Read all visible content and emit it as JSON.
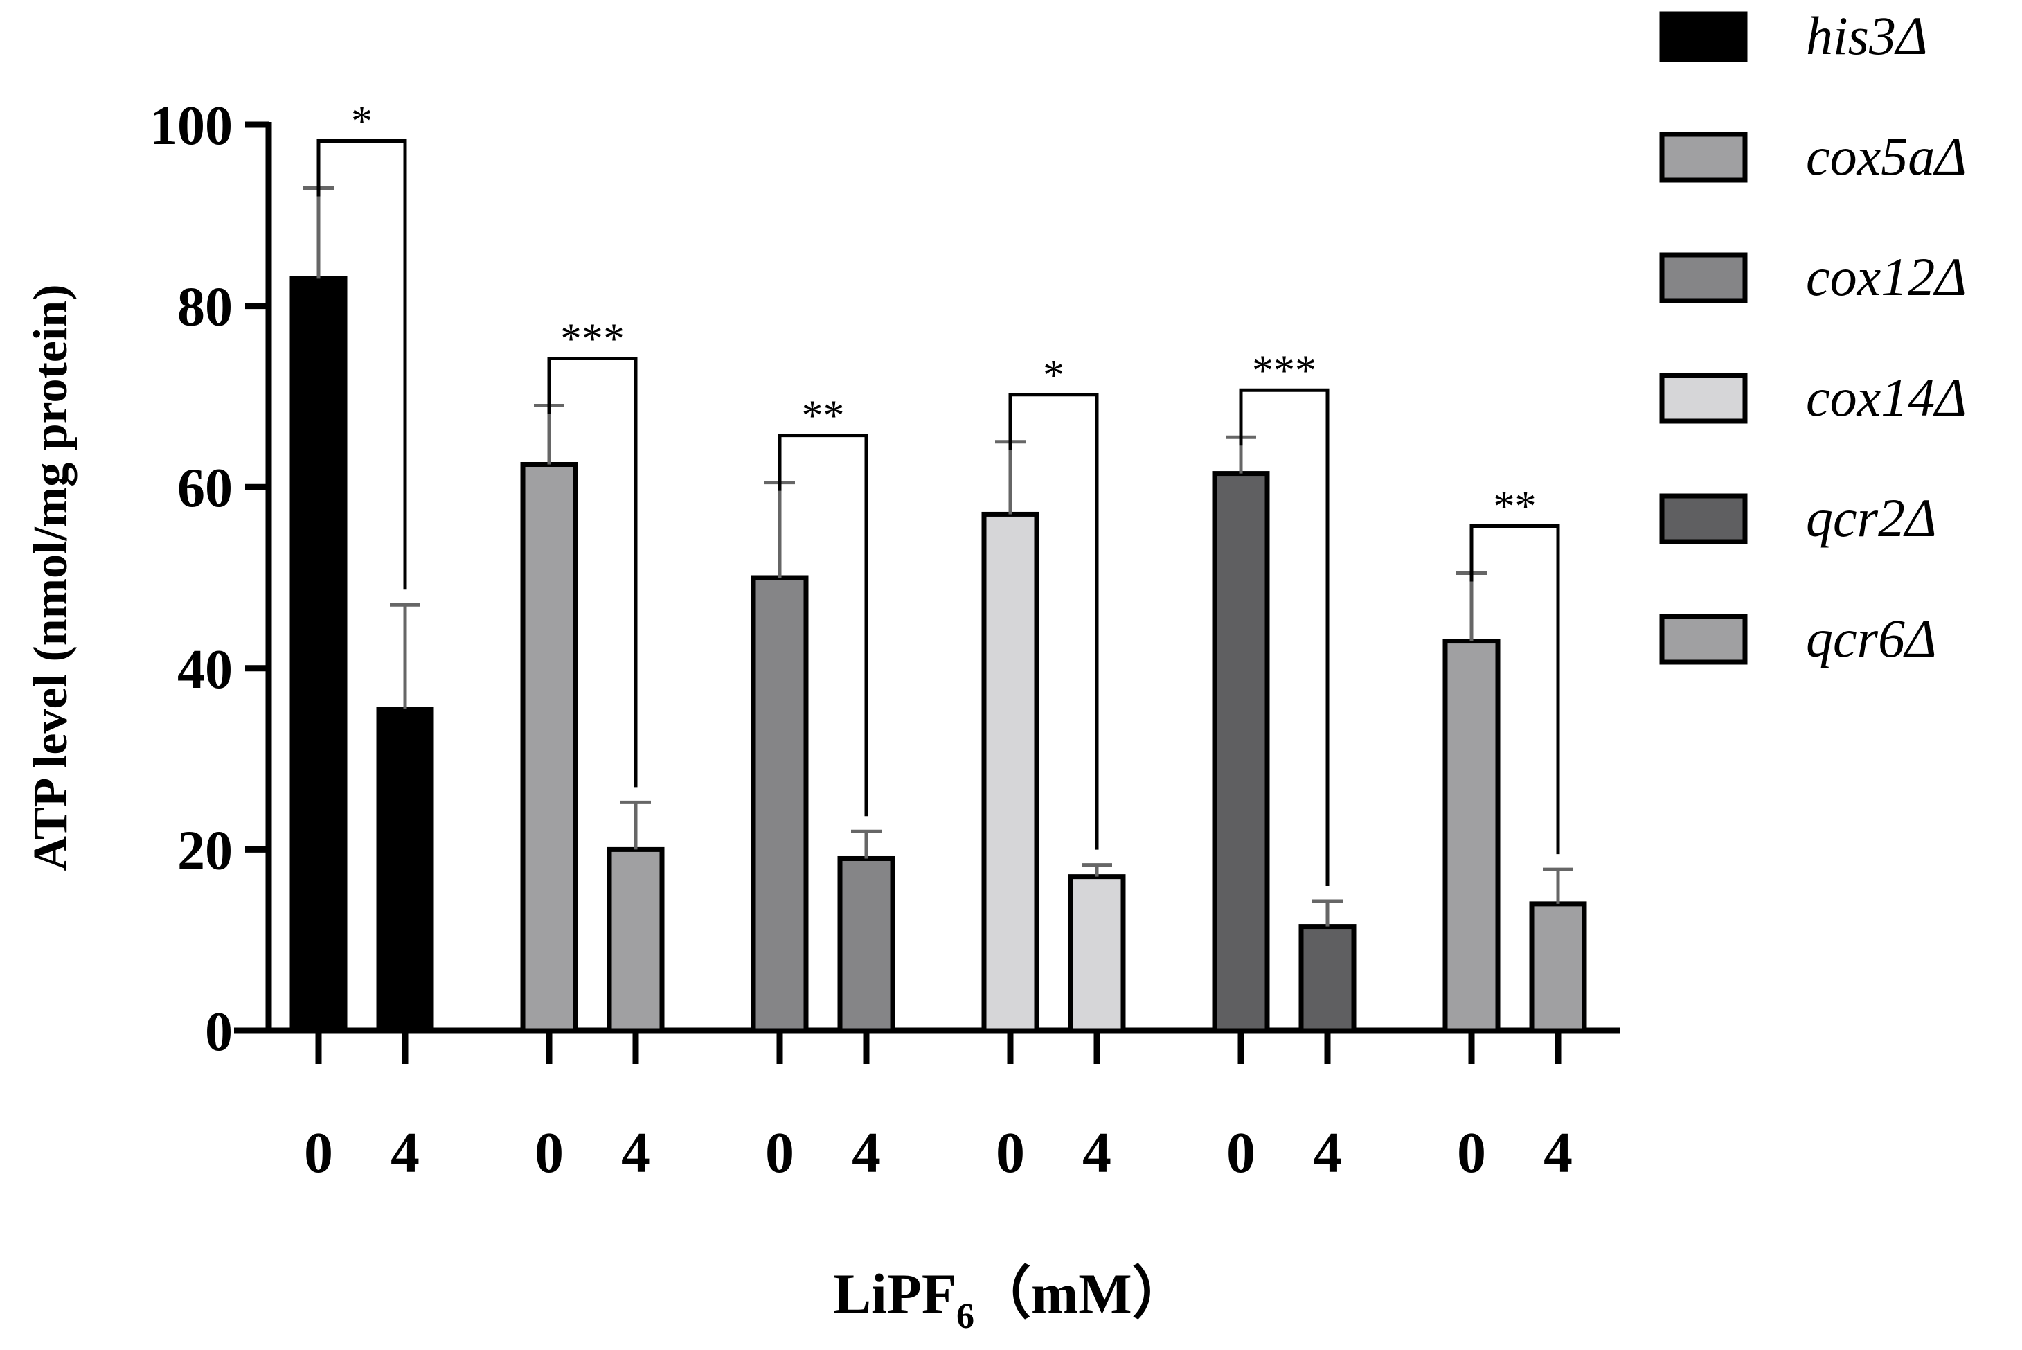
{
  "chart_data": {
    "type": "bar",
    "title": "",
    "xlabel": {
      "base": "LiPF",
      "subscript": "6",
      "unit": "（mM）"
    },
    "ylabel": "ATP level (nmol/mg protein)",
    "ylim": [
      0,
      100
    ],
    "yticks": [
      "0",
      "20",
      "40",
      "60",
      "80",
      "100"
    ],
    "categories": [
      "0",
      "4"
    ],
    "legend_position": "top-right",
    "series": [
      {
        "name": "his3Δ",
        "color": "#000000",
        "values": [
          83,
          35.5
        ],
        "errors": [
          10,
          11.5
        ],
        "significance": "*"
      },
      {
        "name": "cox5aΔ",
        "color": "#a0a0a2",
        "values": [
          62.5,
          20
        ],
        "errors": [
          6.5,
          5.2
        ],
        "significance": "***"
      },
      {
        "name": "cox12Δ",
        "color": "#858587",
        "values": [
          50,
          19
        ],
        "errors": [
          10.5,
          3
        ],
        "significance": "**"
      },
      {
        "name": "cox14Δ",
        "color": "#d6d6d8",
        "values": [
          57,
          17
        ],
        "errors": [
          8,
          1.3
        ],
        "significance": "*"
      },
      {
        "name": "qcr2Δ",
        "color": "#5f5f61",
        "values": [
          61.5,
          11.5
        ],
        "errors": [
          4,
          2.8
        ],
        "significance": "***"
      },
      {
        "name": "qcr6Δ",
        "color": "#a0a0a2",
        "values": [
          43,
          14
        ],
        "errors": [
          7.5,
          3.8
        ],
        "significance": "**"
      }
    ]
  }
}
